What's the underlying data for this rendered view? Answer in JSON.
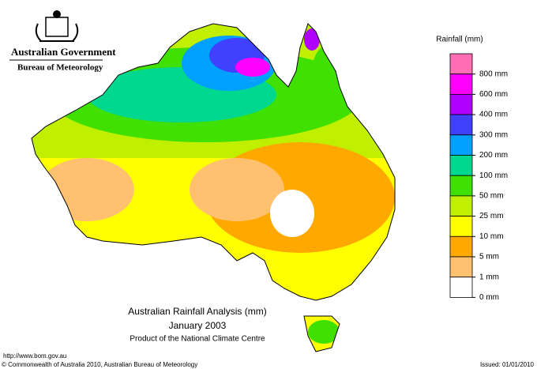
{
  "header": {
    "government": "Australian Government",
    "bureau": "Bureau of Meteorology"
  },
  "legend": {
    "title": "Rainfall (mm)",
    "colors": [
      "#ff6eb4",
      "#ff00ff",
      "#b000ff",
      "#4040ff",
      "#00a0ff",
      "#00d890",
      "#40e000",
      "#c0f000",
      "#ffff00",
      "#ffa800",
      "#ffc070",
      "#ffffff"
    ],
    "labels": [
      "800 mm",
      "600 mm",
      "400 mm",
      "300 mm",
      "200 mm",
      "100 mm",
      "50 mm",
      "25 mm",
      "10 mm",
      "5 mm",
      "1 mm",
      "0 mm"
    ]
  },
  "title": {
    "line1": "Australian Rainfall Analysis (mm)",
    "line2": "January 2003",
    "line3": "Product of the National Climate Centre"
  },
  "footer": {
    "url": "http://www.bom.gov.au",
    "copyright": "© Commonwealth of Australia 2010, Australian Bureau of Meteorology",
    "issued": "Issued: 01/01/2010"
  }
}
